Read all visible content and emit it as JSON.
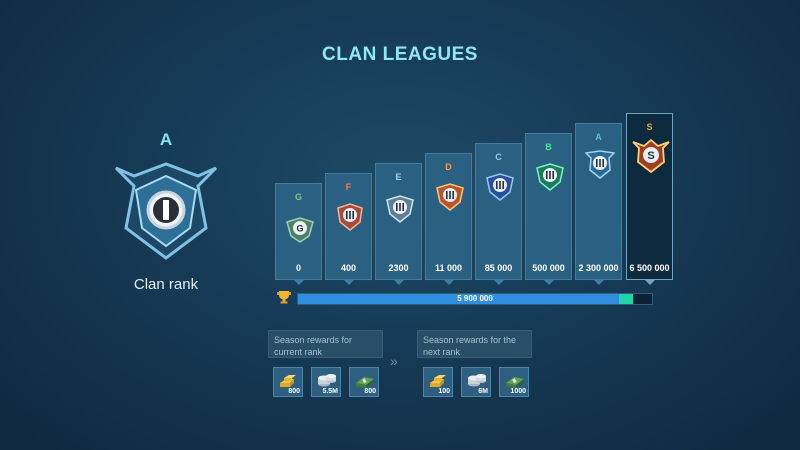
{
  "title": "CLAN LEAGUES",
  "current_rank": {
    "letter": "A",
    "label": "Clan rank",
    "badge_icon": "rank-a-badge-icon"
  },
  "leagues": [
    {
      "letter": "G",
      "threshold": "0",
      "color": "#8dbf7a"
    },
    {
      "letter": "F",
      "threshold": "400",
      "color": "#ff7b4a"
    },
    {
      "letter": "E",
      "threshold": "2300",
      "color": "#a7d3ea"
    },
    {
      "letter": "D",
      "threshold": "11 000",
      "color": "#f0a14a"
    },
    {
      "letter": "C",
      "threshold": "85 000",
      "color": "#a0c8ea"
    },
    {
      "letter": "B",
      "threshold": "500 000",
      "color": "#4fe2a6"
    },
    {
      "letter": "A",
      "threshold": "2 300 000",
      "color": "#5fb9e8"
    },
    {
      "letter": "S",
      "threshold": "6 500 000",
      "color": "#f2a43a"
    }
  ],
  "progress": {
    "value": "5 900 000",
    "fraction": 0.908
  },
  "rewards": {
    "current": {
      "heading": "Season rewards for current rank",
      "items": [
        {
          "icon": "gold-bars-icon",
          "amount": "800"
        },
        {
          "icon": "silver-coins-icon",
          "amount": "5.5M"
        },
        {
          "icon": "cash-bundle-icon",
          "amount": "800"
        }
      ]
    },
    "next": {
      "heading": "Season rewards for the next rank",
      "items": [
        {
          "icon": "gold-bars-icon",
          "amount": "100"
        },
        {
          "icon": "silver-coins-icon",
          "amount": "6M"
        },
        {
          "icon": "cash-bundle-icon",
          "amount": "1000"
        }
      ]
    }
  }
}
